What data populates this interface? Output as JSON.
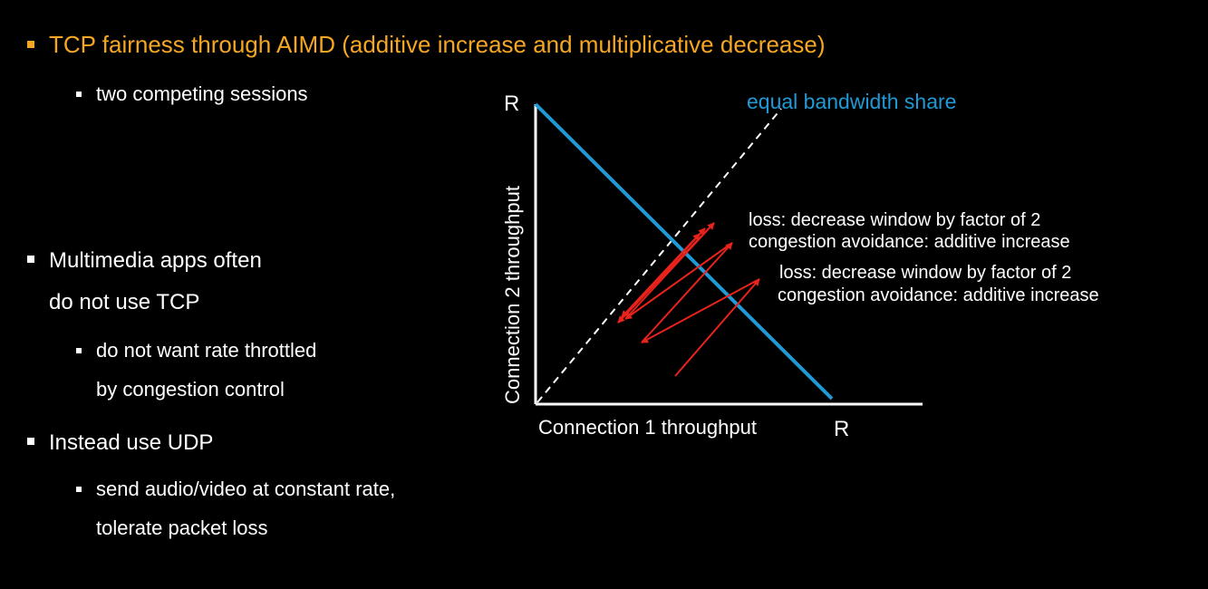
{
  "slide": {
    "title": "TCP fairness through AIMD (additive increase and multiplicative decrease)",
    "bullets": {
      "sessions": "two competing sessions",
      "multimedia_line1": "Multimedia apps often",
      "multimedia_line2": "do not use TCP",
      "throttle_line1": "do not want rate throttled",
      "throttle_line2": "by congestion control",
      "udp": "Instead use UDP",
      "send_line1": "send audio/video at constant rate,",
      "send_line2": "tolerate packet loss"
    }
  },
  "diagram": {
    "y_axis_label": "Connection 2 throughput",
    "x_axis_label": "Connection 1 throughput",
    "y_max_label": "R",
    "x_max_label": "R",
    "equal_share_label": "equal bandwidth share",
    "annotation1_line1": "loss: decrease window by factor of 2",
    "annotation1_line2": "congestion avoidance: additive increase",
    "annotation2_line1": "loss: decrease window by factor of 2",
    "annotation2_line2": "congestion avoidance: additive increase",
    "colors": {
      "title": "#f5a623",
      "bandwidth_line": "#1f9ad6",
      "arrows": "#e8231c",
      "axes": "#ffffff",
      "equal_share_line": "#ffffff"
    }
  }
}
